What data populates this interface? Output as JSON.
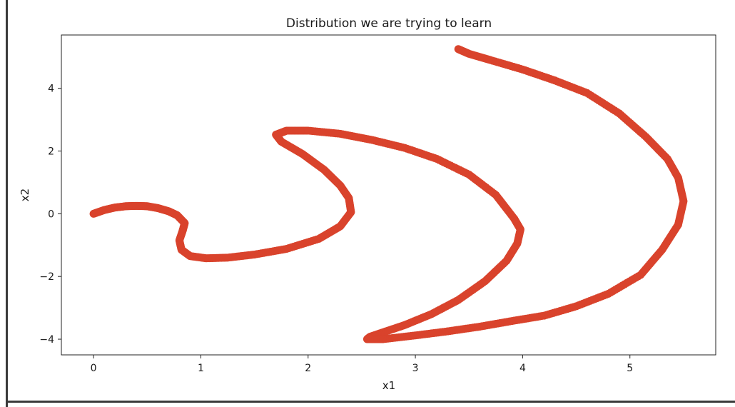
{
  "chart_data": {
    "type": "scatter",
    "title": "Distribution we are trying to learn",
    "xlabel": "x1",
    "ylabel": "x2",
    "xlim": [
      -0.3,
      5.8
    ],
    "ylim": [
      -4.5,
      5.7
    ],
    "xticks": [
      0,
      1,
      2,
      3,
      4,
      5
    ],
    "yticks": [
      -4,
      -2,
      0,
      2,
      4
    ],
    "grid": false,
    "point_color": "#d9432c",
    "series": [
      {
        "points": [
          [
            0.0,
            0.0
          ],
          [
            0.1,
            0.12
          ],
          [
            0.2,
            0.2
          ],
          [
            0.3,
            0.24
          ],
          [
            0.4,
            0.25
          ],
          [
            0.5,
            0.24
          ],
          [
            0.6,
            0.18
          ],
          [
            0.7,
            0.08
          ],
          [
            0.78,
            -0.05
          ],
          [
            0.85,
            -0.3
          ],
          [
            0.83,
            -0.55
          ],
          [
            0.8,
            -0.85
          ],
          [
            0.82,
            -1.15
          ],
          [
            0.9,
            -1.35
          ],
          [
            1.05,
            -1.42
          ],
          [
            1.25,
            -1.4
          ],
          [
            1.5,
            -1.3
          ],
          [
            1.8,
            -1.12
          ],
          [
            2.1,
            -0.8
          ],
          [
            2.3,
            -0.4
          ],
          [
            2.4,
            0.05
          ],
          [
            2.38,
            0.5
          ],
          [
            2.3,
            0.9
          ],
          [
            2.15,
            1.4
          ],
          [
            1.95,
            1.9
          ],
          [
            1.75,
            2.3
          ],
          [
            1.7,
            2.52
          ],
          [
            1.8,
            2.65
          ],
          [
            2.0,
            2.65
          ],
          [
            2.3,
            2.55
          ],
          [
            2.6,
            2.35
          ],
          [
            2.9,
            2.1
          ],
          [
            3.2,
            1.75
          ],
          [
            3.5,
            1.25
          ],
          [
            3.75,
            0.6
          ],
          [
            3.92,
            -0.15
          ],
          [
            3.98,
            -0.5
          ],
          [
            3.95,
            -0.95
          ],
          [
            3.85,
            -1.5
          ],
          [
            3.65,
            -2.15
          ],
          [
            3.4,
            -2.75
          ],
          [
            3.15,
            -3.2
          ],
          [
            2.9,
            -3.55
          ],
          [
            2.7,
            -3.78
          ],
          [
            2.58,
            -3.92
          ],
          [
            2.55,
            -4.0
          ],
          [
            2.7,
            -4.0
          ],
          [
            3.0,
            -3.88
          ],
          [
            3.3,
            -3.75
          ],
          [
            3.6,
            -3.6
          ],
          [
            3.9,
            -3.42
          ],
          [
            4.2,
            -3.25
          ],
          [
            4.5,
            -2.95
          ],
          [
            4.8,
            -2.55
          ],
          [
            5.1,
            -1.95
          ],
          [
            5.3,
            -1.15
          ],
          [
            5.45,
            -0.35
          ],
          [
            5.5,
            0.4
          ],
          [
            5.45,
            1.15
          ],
          [
            5.35,
            1.75
          ],
          [
            5.15,
            2.45
          ],
          [
            4.9,
            3.2
          ],
          [
            4.6,
            3.85
          ],
          [
            4.3,
            4.25
          ],
          [
            4.0,
            4.6
          ],
          [
            3.7,
            4.9
          ],
          [
            3.5,
            5.1
          ],
          [
            3.4,
            5.25
          ]
        ]
      }
    ]
  }
}
